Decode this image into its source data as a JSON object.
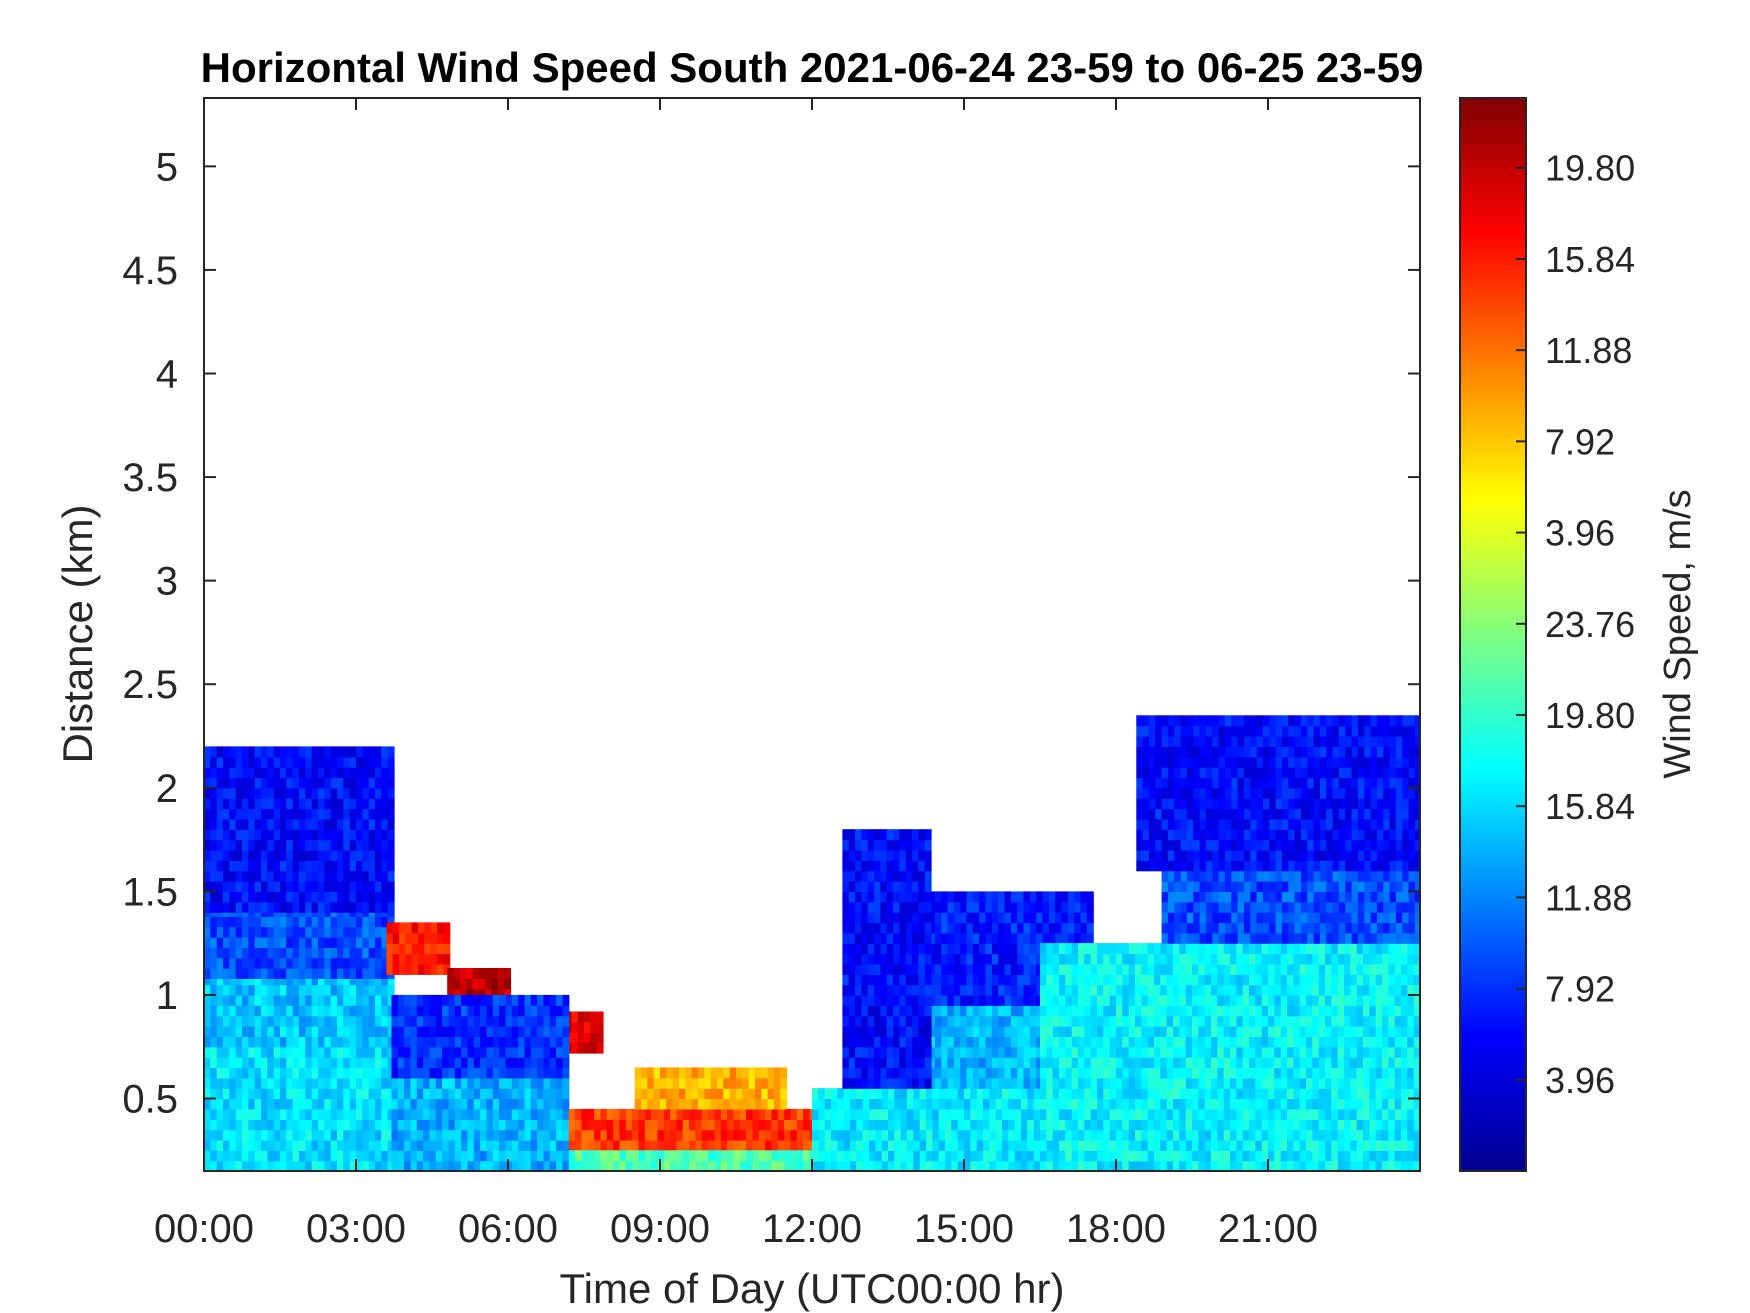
{
  "chart_data": {
    "type": "heatmap",
    "title": "Horizontal Wind Speed South 2021-06-24 23-59 to 06-25 23-59",
    "xlabel": "Time of Day (UTC00:00 hr)",
    "ylabel": "Distance (km)",
    "colorbar_label": "Wind Speed, m/s",
    "xlim_hours": [
      0,
      24
    ],
    "ylim_km": [
      0.15,
      5.33
    ],
    "x_ticks": [
      {
        "value": 0,
        "label": "00:00"
      },
      {
        "value": 3,
        "label": "03:00"
      },
      {
        "value": 6,
        "label": "06:00"
      },
      {
        "value": 9,
        "label": "09:00"
      },
      {
        "value": 12,
        "label": "12:00"
      },
      {
        "value": 15,
        "label": "15:00"
      },
      {
        "value": 18,
        "label": "18:00"
      },
      {
        "value": 21,
        "label": "21:00"
      }
    ],
    "y_ticks": [
      {
        "value": 0.5,
        "label": "0.5"
      },
      {
        "value": 1,
        "label": "1"
      },
      {
        "value": 1.5,
        "label": "1.5"
      },
      {
        "value": 2,
        "label": "2"
      },
      {
        "value": 2.5,
        "label": "2.5"
      },
      {
        "value": 3,
        "label": "3"
      },
      {
        "value": 3.5,
        "label": "3.5"
      },
      {
        "value": 4,
        "label": "4"
      },
      {
        "value": 4.5,
        "label": "4.5"
      },
      {
        "value": 5,
        "label": "5"
      }
    ],
    "colorbar_ticks": [
      {
        "fraction": 0.085,
        "label": "3.96"
      },
      {
        "fraction": 0.17,
        "label": "7.92"
      },
      {
        "fraction": 0.255,
        "label": "11.88"
      },
      {
        "fraction": 0.34,
        "label": "15.84"
      },
      {
        "fraction": 0.425,
        "label": "19.80"
      },
      {
        "fraction": 0.51,
        "label": "23.76"
      },
      {
        "fraction": 0.595,
        "label": "3.96"
      },
      {
        "fraction": 0.68,
        "label": "7.92"
      },
      {
        "fraction": 0.765,
        "label": "11.88"
      },
      {
        "fraction": 0.85,
        "label": "15.84"
      },
      {
        "fraction": 0.935,
        "label": "19.80"
      }
    ],
    "colormap": "jet",
    "colormap_stops": [
      "#00008f",
      "#0000ff",
      "#0080ff",
      "#00ffff",
      "#80ff80",
      "#ffff00",
      "#ff8000",
      "#ff0000",
      "#800000"
    ],
    "regions": [
      {
        "name": "night-early-low",
        "t": [
          0,
          3.7
        ],
        "z": [
          0.15,
          0.75
        ],
        "speed": 0.35
      },
      {
        "name": "night-early-mid",
        "t": [
          0,
          3.7
        ],
        "z": [
          0.75,
          1.08
        ],
        "speed": 0.32
      },
      {
        "name": "night-early-upper",
        "t": [
          0,
          3.7
        ],
        "z": [
          1.08,
          1.4
        ],
        "speed": 0.2
      },
      {
        "name": "night-early-top",
        "t": [
          0,
          3.7
        ],
        "z": [
          1.4,
          2.2
        ],
        "speed": 0.13
      },
      {
        "name": "jet-descent-1",
        "t": [
          3.6,
          4.8
        ],
        "z": [
          1.1,
          1.35
        ],
        "speed": 0.85
      },
      {
        "name": "jet-descent-2",
        "t": [
          4.8,
          6.0
        ],
        "z": [
          0.88,
          1.1
        ],
        "speed": 0.95
      },
      {
        "name": "jet-descent-3",
        "t": [
          6.0,
          7.8
        ],
        "z": [
          0.72,
          0.9
        ],
        "speed": 0.9
      },
      {
        "name": "morning-low",
        "t": [
          3.7,
          7.2
        ],
        "z": [
          0.15,
          0.6
        ],
        "speed": 0.3
      },
      {
        "name": "morning-mid",
        "t": [
          3.7,
          7.2
        ],
        "z": [
          0.6,
          1.0
        ],
        "speed": 0.17
      },
      {
        "name": "late-morning-jet",
        "t": [
          7.2,
          12.0
        ],
        "z": [
          0.25,
          0.45
        ],
        "speed": 0.82
      },
      {
        "name": "late-morning-jet-upper",
        "t": [
          8.5,
          11.5
        ],
        "z": [
          0.45,
          0.65
        ],
        "speed": 0.7
      },
      {
        "name": "midday-low",
        "t": [
          7.2,
          12.0
        ],
        "z": [
          0.15,
          0.25
        ],
        "speed": 0.45
      },
      {
        "name": "afternoon-low",
        "t": [
          12.0,
          16.5
        ],
        "z": [
          0.15,
          0.55
        ],
        "speed": 0.36
      },
      {
        "name": "afternoon-mid",
        "t": [
          14.3,
          17.5
        ],
        "z": [
          0.55,
          0.95
        ],
        "speed": 0.3
      },
      {
        "name": "afternoon-upper",
        "t": [
          14.3,
          17.5
        ],
        "z": [
          0.95,
          1.5
        ],
        "speed": 0.15
      },
      {
        "name": "afternoon-columns",
        "t": [
          12.6,
          14.3
        ],
        "z": [
          0.55,
          1.8
        ],
        "speed": 0.13
      },
      {
        "name": "evening-low",
        "t": [
          16.5,
          24.0
        ],
        "z": [
          0.15,
          1.25
        ],
        "speed": 0.37
      },
      {
        "name": "evening-mid",
        "t": [
          18.9,
          24.0
        ],
        "z": [
          1.25,
          1.6
        ],
        "speed": 0.2
      },
      {
        "name": "evening-top",
        "t": [
          18.4,
          24.0
        ],
        "z": [
          1.6,
          2.35
        ],
        "speed": 0.13
      }
    ],
    "grid": false
  }
}
